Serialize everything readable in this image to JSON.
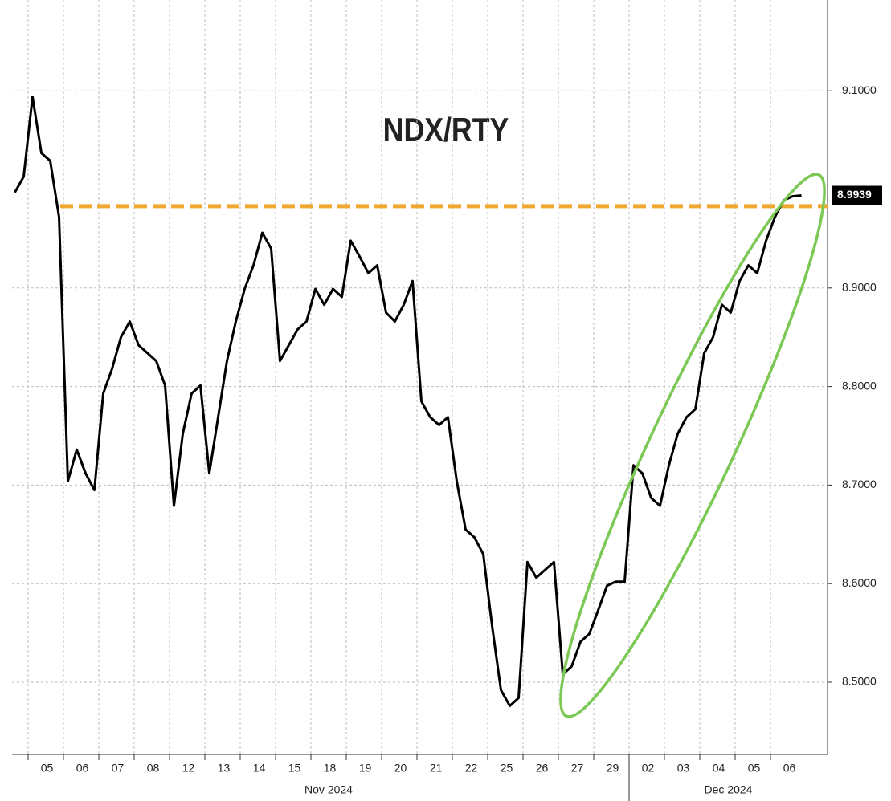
{
  "chart_data": {
    "type": "line",
    "title": "NDX/RTY",
    "categories": [
      null,
      null,
      null,
      null,
      "05",
      null,
      null,
      null,
      "06",
      null,
      null,
      null,
      "07",
      null,
      null,
      null,
      "08",
      null,
      null,
      null,
      "12",
      null,
      null,
      null,
      "13",
      null,
      null,
      null,
      "14",
      null,
      null,
      null,
      "15",
      null,
      null,
      null,
      "18",
      null,
      null,
      null,
      "19",
      null,
      null,
      null,
      "20",
      null,
      null,
      null,
      "21",
      null,
      null,
      null,
      "22",
      null,
      null,
      null,
      "25",
      null,
      null,
      null,
      "26",
      null,
      null,
      null,
      "27",
      null,
      null,
      null,
      "29",
      null,
      null,
      null,
      "02",
      null,
      null,
      null,
      "03",
      null,
      null,
      null,
      "04",
      null,
      null,
      null,
      "05",
      null,
      null,
      null,
      "06",
      null
    ],
    "x_group_labels": [
      "Nov 2024",
      "Dec 2024"
    ],
    "series": [
      {
        "name": "NDX/RTY",
        "color": "#000000",
        "values": [
          8.997,
          9.013,
          9.094,
          9.037,
          9.029,
          8.972,
          8.704,
          8.736,
          8.712,
          8.695,
          8.793,
          8.818,
          8.85,
          8.866,
          8.842,
          8.834,
          8.826,
          8.801,
          8.679,
          8.752,
          8.793,
          8.801,
          8.712,
          8.769,
          8.826,
          8.866,
          8.899,
          8.923,
          8.956,
          8.94,
          8.826,
          8.842,
          8.858,
          8.866,
          8.899,
          8.883,
          8.899,
          8.891,
          8.948,
          8.932,
          8.915,
          8.923,
          8.875,
          8.866,
          8.883,
          8.907,
          8.785,
          8.769,
          8.761,
          8.769,
          8.704,
          8.655,
          8.647,
          8.63,
          8.557,
          8.492,
          8.476,
          8.484,
          8.622,
          8.606,
          8.614,
          8.622,
          8.508,
          8.516,
          8.541,
          8.549,
          8.573,
          8.598,
          8.602,
          8.602,
          8.72,
          8.712,
          8.687,
          8.679,
          8.72,
          8.752,
          8.769,
          8.777,
          8.834,
          8.85,
          8.883,
          8.875,
          8.907,
          8.923,
          8.915,
          8.948,
          8.972,
          8.989,
          8.993,
          8.9939
        ]
      }
    ],
    "reference_line": {
      "value": 8.983,
      "color": "#f0a830"
    },
    "highlight_color": "#7cc855",
    "ylim": [
      8.4267,
      9.1922
    ],
    "yticks": [
      {
        "value": 8.5,
        "label": "8.5000"
      },
      {
        "value": 8.6,
        "label": "8.6000"
      },
      {
        "value": 8.7,
        "label": "8.7000"
      },
      {
        "value": 8.8,
        "label": "8.8000"
      },
      {
        "value": 8.9,
        "label": "8.9000"
      },
      {
        "value": 9.1,
        "label": "9.1000"
      }
    ],
    "grid": true
  }
}
